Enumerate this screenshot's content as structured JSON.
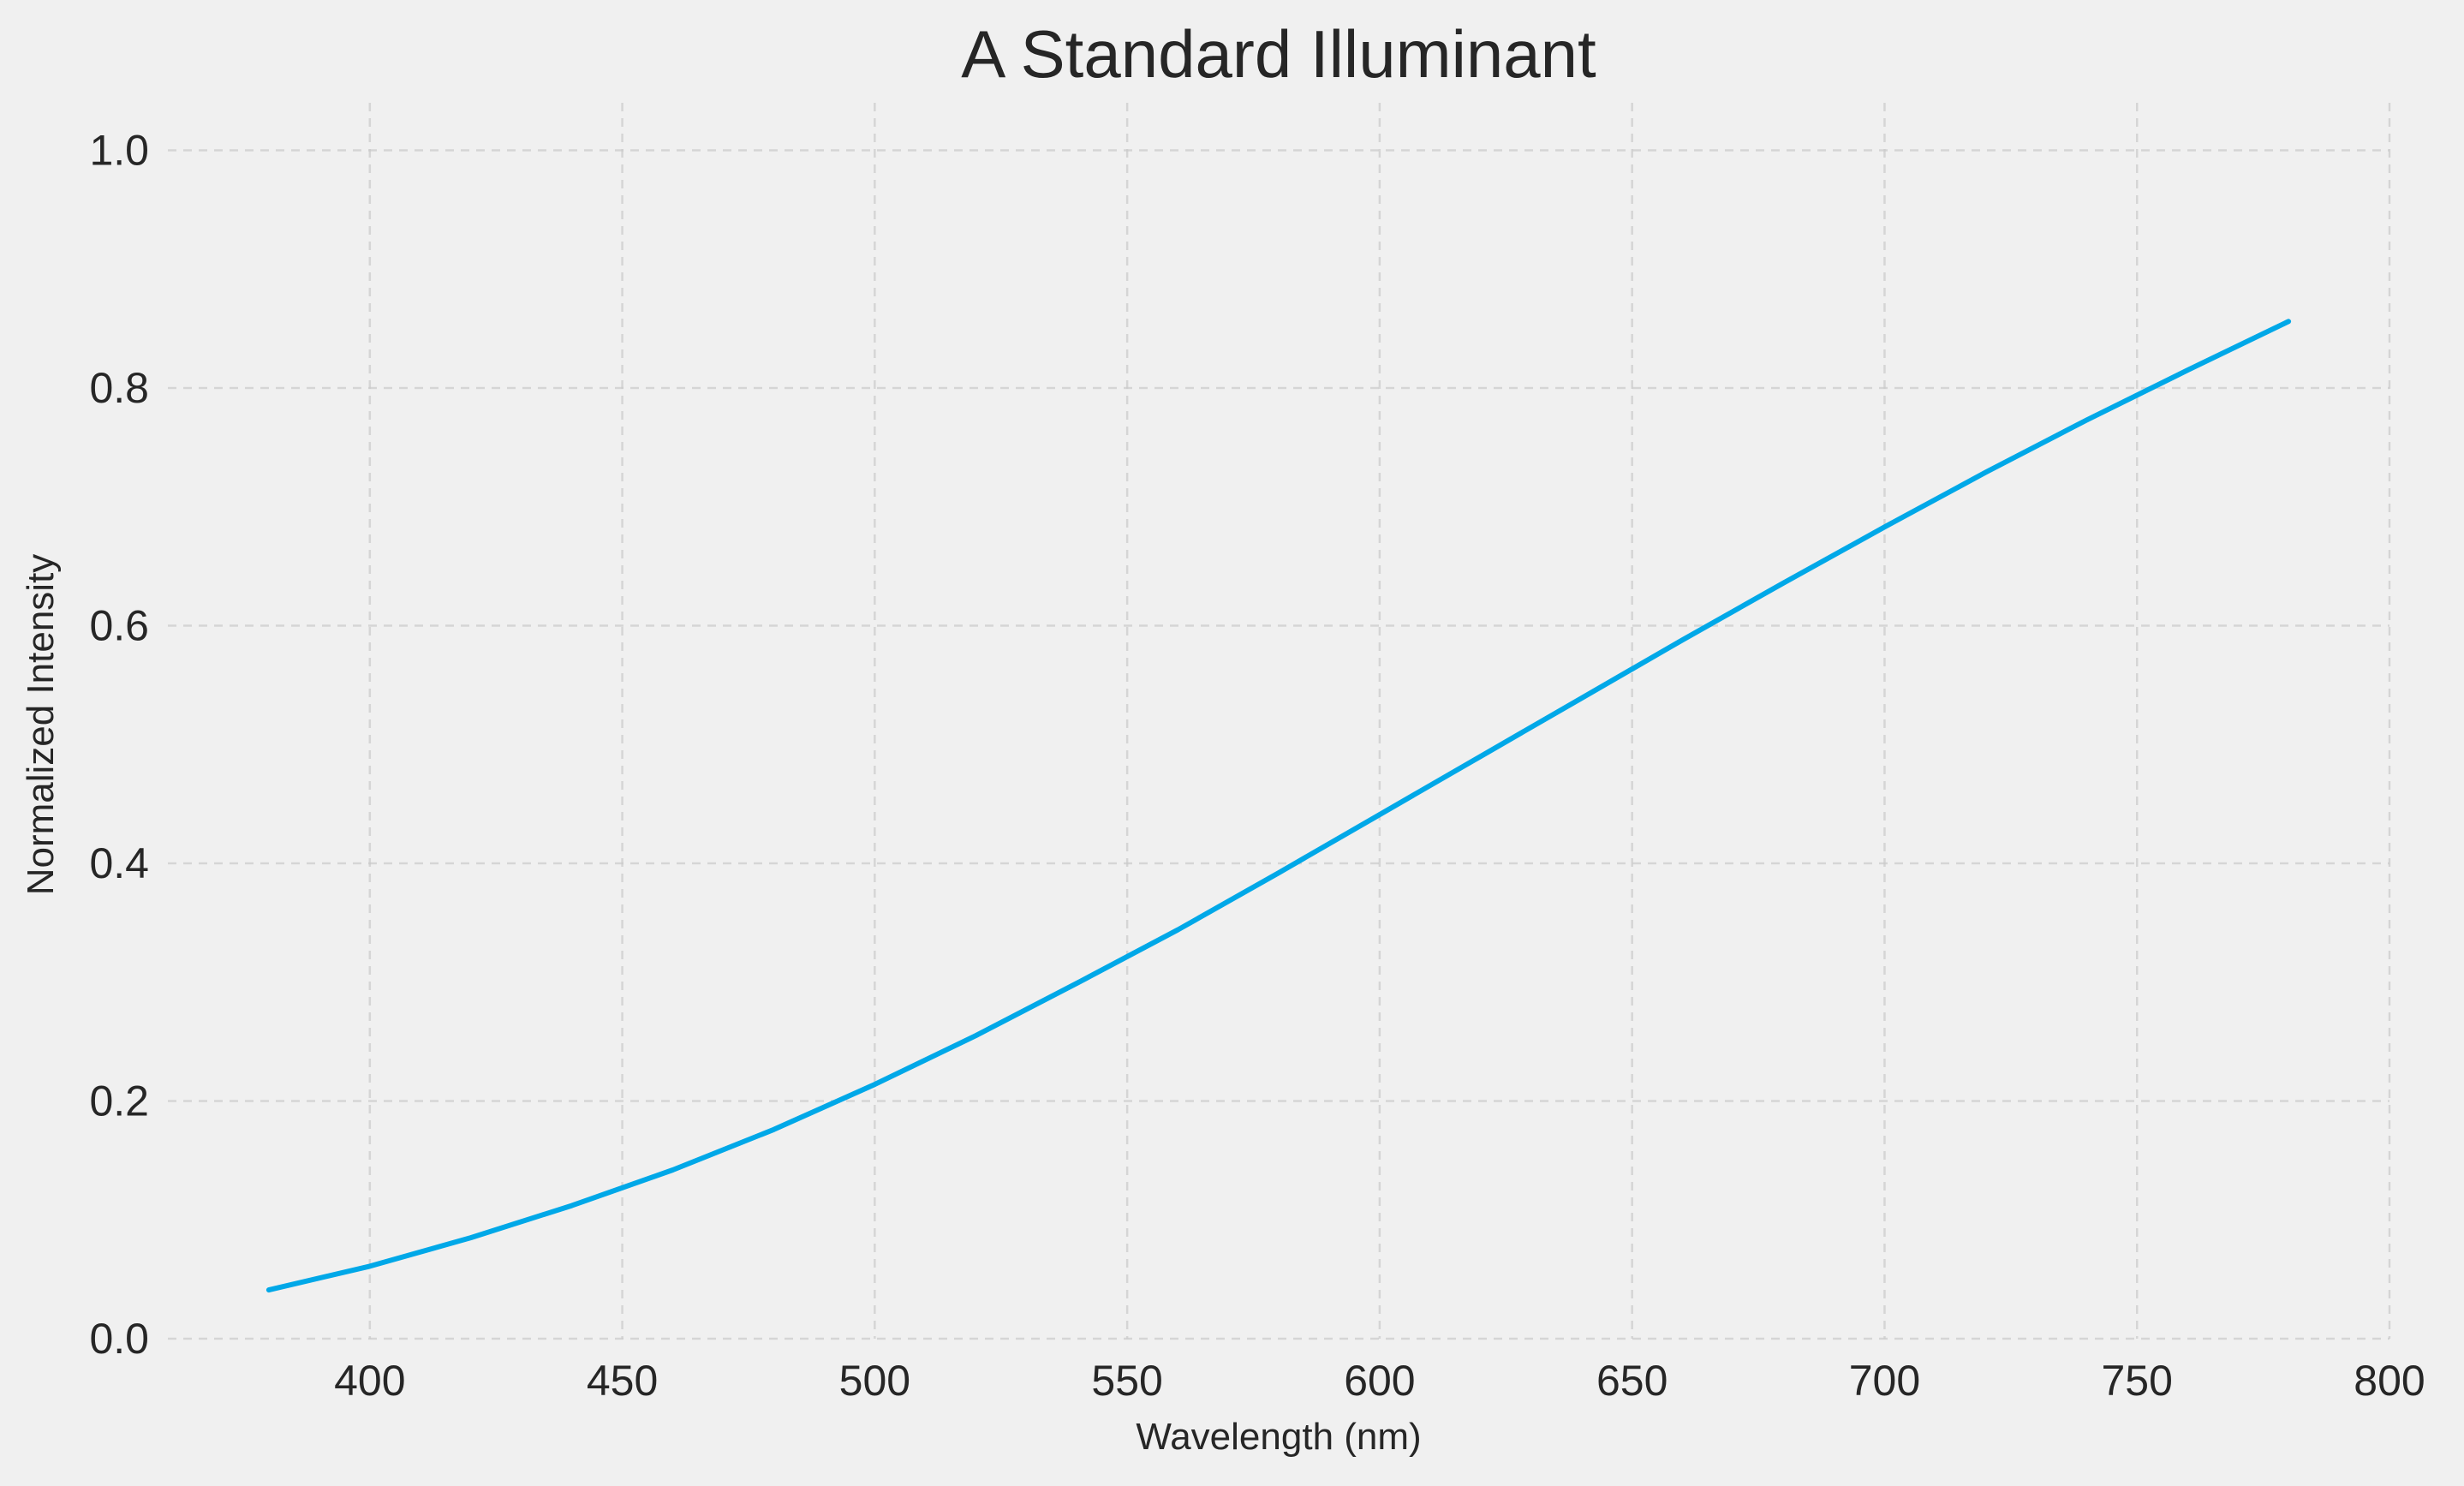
{
  "chart_data": {
    "type": "line",
    "title": "A Standard Illuminant",
    "xlabel": "Wavelength (nm)",
    "ylabel": "Normalized Intensity",
    "xlim": [
      360,
      800
    ],
    "ylim": [
      0.0,
      1.04
    ],
    "x_ticks": [
      400,
      450,
      500,
      550,
      600,
      650,
      700,
      750,
      800
    ],
    "x_tick_labels": [
      "400",
      "450",
      "500",
      "550",
      "600",
      "650",
      "700",
      "750",
      "800"
    ],
    "y_ticks": [
      0.0,
      0.2,
      0.4,
      0.6,
      0.8,
      1.0
    ],
    "y_tick_labels": [
      "0.0",
      "0.2",
      "0.4",
      "0.6",
      "0.8",
      "1.0"
    ],
    "grid": true,
    "legend": "none",
    "series": [
      {
        "color": "#00a8e8",
        "x": [
          380,
          400,
          420,
          440,
          460,
          480,
          500,
          520,
          540,
          560,
          580,
          600,
          620,
          640,
          660,
          680,
          700,
          720,
          740,
          760,
          780
        ],
        "y": [
          0.041,
          0.061,
          0.085,
          0.112,
          0.142,
          0.176,
          0.214,
          0.255,
          0.299,
          0.344,
          0.392,
          0.441,
          0.49,
          0.539,
          0.588,
          0.636,
          0.683,
          0.729,
          0.773,
          0.815,
          0.856
        ]
      }
    ]
  }
}
